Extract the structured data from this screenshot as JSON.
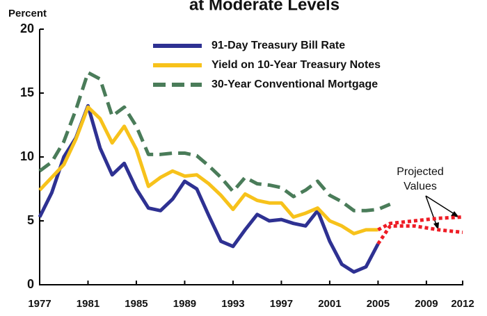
{
  "chart_data": {
    "type": "line",
    "title": "at Moderate Levels",
    "ylabel": "Percent",
    "xlim": [
      1977,
      2012
    ],
    "xticks": [
      1977,
      1981,
      1985,
      1989,
      1993,
      1997,
      2001,
      2005,
      2009,
      2012
    ],
    "ylim": [
      0,
      20
    ],
    "yticks": [
      0,
      5,
      10,
      15,
      20
    ],
    "annotation_lines": [
      "Projected",
      "Values"
    ],
    "series": [
      {
        "name": "91-Day Treasury Bill Rate",
        "color": "#2e3192",
        "style": "solid",
        "x": [
          1977,
          1978,
          1979,
          1980,
          1981,
          1982,
          1983,
          1984,
          1985,
          1986,
          1987,
          1988,
          1989,
          1990,
          1991,
          1992,
          1993,
          1994,
          1995,
          1996,
          1997,
          1998,
          1999,
          2000,
          2001,
          2002,
          2003,
          2004,
          2005
        ],
        "values": [
          5.3,
          7.2,
          10.0,
          11.5,
          14.0,
          10.7,
          8.6,
          9.5,
          7.5,
          6.0,
          5.8,
          6.7,
          8.1,
          7.5,
          5.4,
          3.4,
          3.0,
          4.3,
          5.5,
          5.0,
          5.1,
          4.8,
          4.6,
          5.8,
          3.4,
          1.6,
          1.0,
          1.4,
          3.2
        ]
      },
      {
        "name": "Yield on 10-Year Treasury Notes",
        "color": "#f7c21b",
        "style": "solid",
        "x": [
          1977,
          1978,
          1979,
          1980,
          1981,
          1982,
          1983,
          1984,
          1985,
          1986,
          1987,
          1988,
          1989,
          1990,
          1991,
          1992,
          1993,
          1994,
          1995,
          1996,
          1997,
          1998,
          1999,
          2000,
          2001,
          2002,
          2003,
          2004,
          2005
        ],
        "values": [
          7.4,
          8.4,
          9.4,
          11.4,
          13.9,
          13.0,
          11.1,
          12.4,
          10.6,
          7.7,
          8.4,
          8.9,
          8.5,
          8.6,
          7.9,
          7.0,
          5.9,
          7.1,
          6.6,
          6.4,
          6.4,
          5.3,
          5.6,
          6.0,
          5.0,
          4.6,
          4.0,
          4.3,
          4.3
        ]
      },
      {
        "name": "30-Year Conventional Mortgage",
        "color": "#4a7c59",
        "style": "dashed",
        "x": [
          1977,
          1978,
          1979,
          1980,
          1981,
          1982,
          1983,
          1984,
          1985,
          1986,
          1987,
          1988,
          1989,
          1990,
          1991,
          1992,
          1993,
          1994,
          1995,
          1996,
          1997,
          1998,
          1999,
          2000,
          2001,
          2002,
          2003,
          2004,
          2005,
          2006
        ],
        "values": [
          8.9,
          9.6,
          11.2,
          13.7,
          16.6,
          16.1,
          13.2,
          13.9,
          12.4,
          10.2,
          10.2,
          10.3,
          10.3,
          10.1,
          9.3,
          8.4,
          7.3,
          8.4,
          7.9,
          7.8,
          7.6,
          6.9,
          7.4,
          8.1,
          7.0,
          6.5,
          5.8,
          5.8,
          5.9,
          6.3
        ]
      },
      {
        "color": "#ee1c25",
        "style": "dotted",
        "x": [
          2005,
          2006,
          2008,
          2010,
          2012
        ],
        "values": [
          4.3,
          4.8,
          5.0,
          5.2,
          5.3
        ]
      },
      {
        "color": "#ee1c25",
        "style": "dotted",
        "x": [
          2005,
          2006,
          2008,
          2010,
          2012
        ],
        "values": [
          3.2,
          4.6,
          4.6,
          4.3,
          4.1
        ]
      }
    ]
  }
}
